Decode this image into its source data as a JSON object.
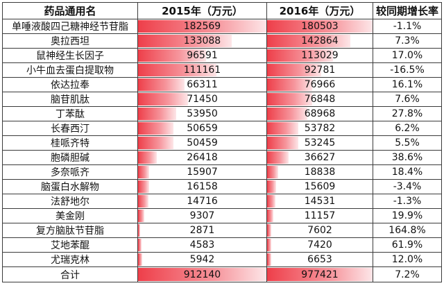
{
  "table": {
    "headers": [
      "药品通用名",
      "2015年（万元）",
      "2016年（万元）",
      "较同期增长率"
    ],
    "rows": [
      {
        "name": "单唾液酸四己糖神经节苷脂",
        "y2015": 182569,
        "y2016": 180503,
        "growth": "-1.1%"
      },
      {
        "name": "奥拉西坦",
        "y2015": 133088,
        "y2016": 142864,
        "growth": "7.3%"
      },
      {
        "name": "鼠神经生长因子",
        "y2015": 96591,
        "y2016": 113029,
        "growth": "17.0%"
      },
      {
        "name": "小牛血去蛋白提取物",
        "y2015": 111161,
        "y2016": 92781,
        "growth": "-16.5%"
      },
      {
        "name": "依达拉奉",
        "y2015": 66311,
        "y2016": 76966,
        "growth": "16.1%"
      },
      {
        "name": "脑苷肌肽",
        "y2015": 71450,
        "y2016": 76848,
        "growth": "7.6%"
      },
      {
        "name": "丁苯酞",
        "y2015": 53950,
        "y2016": 68968,
        "growth": "27.8%"
      },
      {
        "name": "长春西汀",
        "y2015": 50659,
        "y2016": 53782,
        "growth": "6.2%"
      },
      {
        "name": "桂哌齐特",
        "y2015": 50459,
        "y2016": 53245,
        "growth": "5.5%"
      },
      {
        "name": "胞磷胆碱",
        "y2015": 26418,
        "y2016": 36627,
        "growth": "38.6%"
      },
      {
        "name": "多奈哌齐",
        "y2015": 15907,
        "y2016": 18838,
        "growth": "18.4%"
      },
      {
        "name": "脑蛋白水解物",
        "y2015": 16158,
        "y2016": 15609,
        "growth": "-3.4%"
      },
      {
        "name": "法舒地尔",
        "y2015": 14716,
        "y2016": 14531,
        "growth": "-1.3%"
      },
      {
        "name": "美金刚",
        "y2015": 9307,
        "y2016": 11157,
        "growth": "19.9%"
      },
      {
        "name": "复方脑肽节苷脂",
        "y2015": 2871,
        "y2016": 7602,
        "growth": "164.8%"
      },
      {
        "name": "艾地苯醌",
        "y2015": 4583,
        "y2016": 7420,
        "growth": "61.9%"
      },
      {
        "name": "尤瑞克林",
        "y2015": 5942,
        "y2016": 6653,
        "growth": "12.0%"
      }
    ],
    "total": {
      "name": "合计",
      "y2015": 912140,
      "y2016": 977421,
      "growth": "7.2%"
    }
  },
  "colors": {
    "data_bar": "#ee3f4a",
    "border": "#3a3a3a"
  }
}
